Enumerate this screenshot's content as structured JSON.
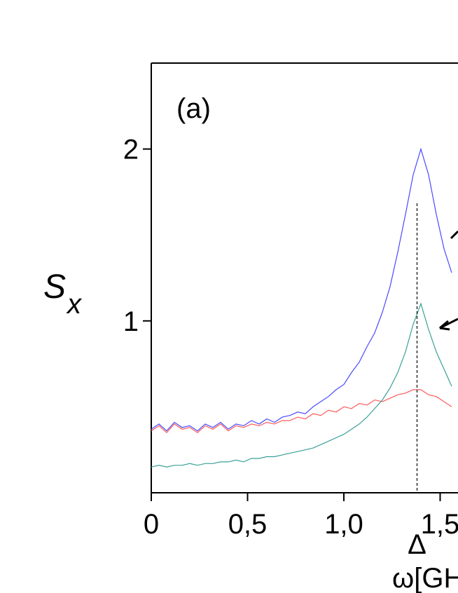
{
  "chart_data": {
    "type": "line",
    "panel_label": "(a)",
    "y_label": "S",
    "y_label_sub": "x",
    "x_label": "ω[GHz]",
    "delta_label": "Δ",
    "delta_x": 1.38,
    "xlim": [
      0,
      1.59
    ],
    "ylim": [
      0,
      2.5
    ],
    "xticks": [
      {
        "value": 0,
        "label": "0"
      },
      {
        "value": 0.5,
        "label": "0,5"
      },
      {
        "value": 1.0,
        "label": "1,0"
      },
      {
        "value": 1.5,
        "label": "1,5"
      }
    ],
    "yticks": [
      1,
      2
    ],
    "x": [
      0,
      0.04,
      0.08,
      0.12,
      0.16,
      0.2,
      0.24,
      0.28,
      0.32,
      0.36,
      0.4,
      0.44,
      0.48,
      0.52,
      0.56,
      0.6,
      0.64,
      0.68,
      0.72,
      0.76,
      0.8,
      0.84,
      0.88,
      0.92,
      0.96,
      1.0,
      1.04,
      1.08,
      1.12,
      1.16,
      1.2,
      1.24,
      1.28,
      1.32,
      1.36,
      1.4,
      1.44,
      1.48,
      1.52,
      1.56
    ],
    "series": [
      {
        "color": "#ff5a5a",
        "values": [
          0.36,
          0.39,
          0.35,
          0.4,
          0.37,
          0.38,
          0.35,
          0.39,
          0.37,
          0.4,
          0.36,
          0.39,
          0.38,
          0.4,
          0.39,
          0.41,
          0.4,
          0.42,
          0.42,
          0.44,
          0.43,
          0.46,
          0.45,
          0.48,
          0.47,
          0.5,
          0.49,
          0.52,
          0.51,
          0.54,
          0.53,
          0.55,
          0.57,
          0.58,
          0.6,
          0.6,
          0.57,
          0.56,
          0.53,
          0.5
        ]
      },
      {
        "color": "#3aa096",
        "values": [
          0.15,
          0.16,
          0.15,
          0.16,
          0.16,
          0.17,
          0.16,
          0.17,
          0.17,
          0.18,
          0.18,
          0.19,
          0.18,
          0.2,
          0.2,
          0.21,
          0.21,
          0.22,
          0.23,
          0.24,
          0.25,
          0.26,
          0.28,
          0.3,
          0.32,
          0.34,
          0.37,
          0.4,
          0.44,
          0.49,
          0.54,
          0.61,
          0.7,
          0.82,
          0.98,
          1.1,
          0.95,
          0.82,
          0.72,
          0.62
        ]
      },
      {
        "color": "#4a4aff",
        "values": [
          0.37,
          0.4,
          0.36,
          0.41,
          0.38,
          0.39,
          0.36,
          0.4,
          0.38,
          0.41,
          0.37,
          0.4,
          0.39,
          0.42,
          0.4,
          0.43,
          0.41,
          0.44,
          0.45,
          0.47,
          0.46,
          0.5,
          0.53,
          0.56,
          0.6,
          0.63,
          0.7,
          0.76,
          0.85,
          0.93,
          1.05,
          1.2,
          1.4,
          1.62,
          1.85,
          2.0,
          1.85,
          1.62,
          1.42,
          1.28
        ]
      }
    ]
  }
}
